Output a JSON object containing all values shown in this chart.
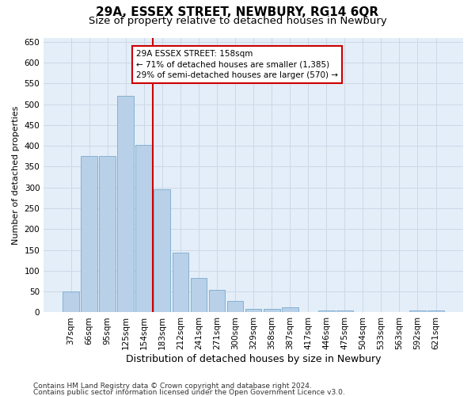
{
  "title1": "29A, ESSEX STREET, NEWBURY, RG14 6QR",
  "title2": "Size of property relative to detached houses in Newbury",
  "xlabel": "Distribution of detached houses by size in Newbury",
  "ylabel": "Number of detached properties",
  "categories": [
    "37sqm",
    "66sqm",
    "95sqm",
    "125sqm",
    "154sqm",
    "183sqm",
    "212sqm",
    "241sqm",
    "271sqm",
    "300sqm",
    "329sqm",
    "358sqm",
    "387sqm",
    "417sqm",
    "446sqm",
    "475sqm",
    "504sqm",
    "533sqm",
    "563sqm",
    "592sqm",
    "621sqm"
  ],
  "values": [
    50,
    375,
    375,
    520,
    403,
    295,
    143,
    82,
    55,
    28,
    8,
    8,
    12,
    0,
    5,
    5,
    0,
    0,
    0,
    5,
    5
  ],
  "bar_color": "#b8d0e8",
  "bar_edge_color": "#7aaacc",
  "vline_x_idx": 4,
  "vline_color": "#cc0000",
  "annotation_line1": "29A ESSEX STREET: 158sqm",
  "annotation_line2": "← 71% of detached houses are smaller (1,385)",
  "annotation_line3": "29% of semi-detached houses are larger (570) →",
  "annotation_box_color": "#ffffff",
  "annotation_box_edge": "#cc0000",
  "ylim": [
    0,
    660
  ],
  "yticks": [
    0,
    50,
    100,
    150,
    200,
    250,
    300,
    350,
    400,
    450,
    500,
    550,
    600,
    650
  ],
  "grid_color": "#ccd8e8",
  "bg_color": "#e4eef8",
  "footer1": "Contains HM Land Registry data © Crown copyright and database right 2024.",
  "footer2": "Contains public sector information licensed under the Open Government Licence v3.0.",
  "title1_fontsize": 11,
  "title2_fontsize": 9.5,
  "xlabel_fontsize": 9,
  "ylabel_fontsize": 8,
  "tick_fontsize": 7.5,
  "annot_fontsize": 7.5,
  "footer_fontsize": 6.5
}
